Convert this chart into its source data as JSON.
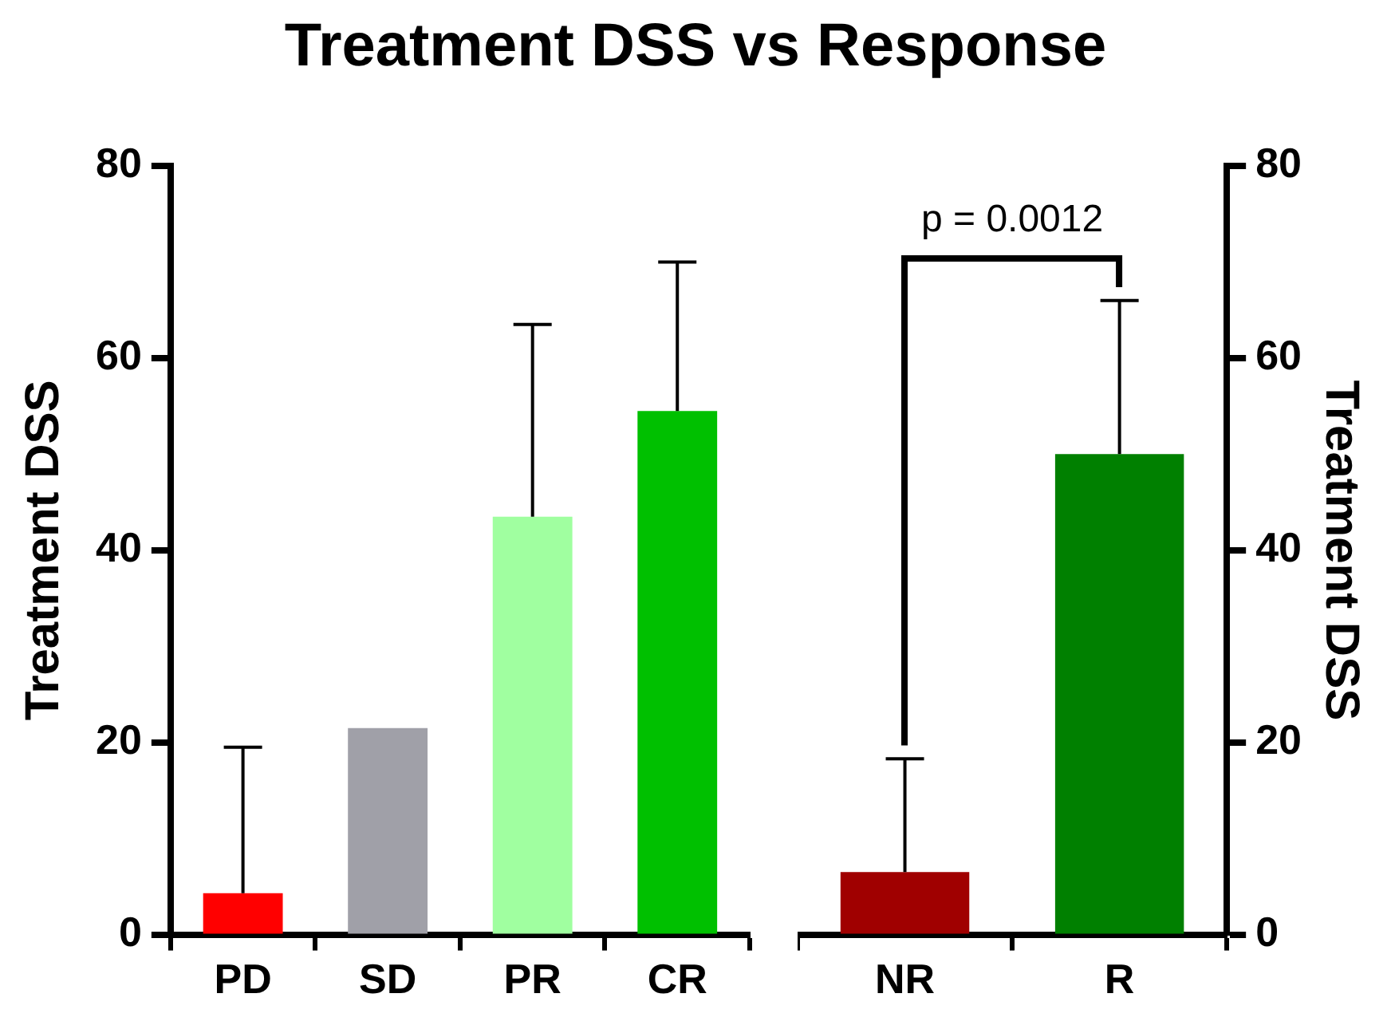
{
  "chart_data": [
    {
      "type": "bar",
      "title": "Treatment DSS vs Response",
      "ylabel": "Treatment DSS",
      "categories": [
        "PD",
        "SD",
        "PR",
        "CR"
      ],
      "values": [
        4.3,
        21.5,
        43.5,
        54.5
      ],
      "colors": [
        "#ff0000",
        "#a0a0a8",
        "#a0ffa0",
        "#00c000"
      ],
      "errors": [
        [
          4.3,
          19.5
        ],
        null,
        [
          43.5,
          63.5
        ],
        [
          54.5,
          70
        ]
      ],
      "ylim": [
        0,
        80
      ],
      "yticks": [
        0,
        20,
        40,
        60,
        80
      ],
      "grid": false,
      "legend": false
    },
    {
      "type": "bar",
      "y2label": "Treatment DSS",
      "categories": [
        "NR",
        "R"
      ],
      "series": [
        {
          "axis": "y2",
          "values": [
            6.5,
            50
          ],
          "colors": [
            "#a00000",
            "#008000"
          ],
          "errors": [
            [
              6.5,
              18.3
            ],
            [
              50,
              66
            ]
          ]
        }
      ],
      "annotations": [
        "p = 0.0012"
      ],
      "y2lim": [
        0,
        80
      ],
      "y2ticks": [
        0,
        20,
        40,
        60,
        80
      ],
      "grid": false,
      "legend": false
    }
  ]
}
